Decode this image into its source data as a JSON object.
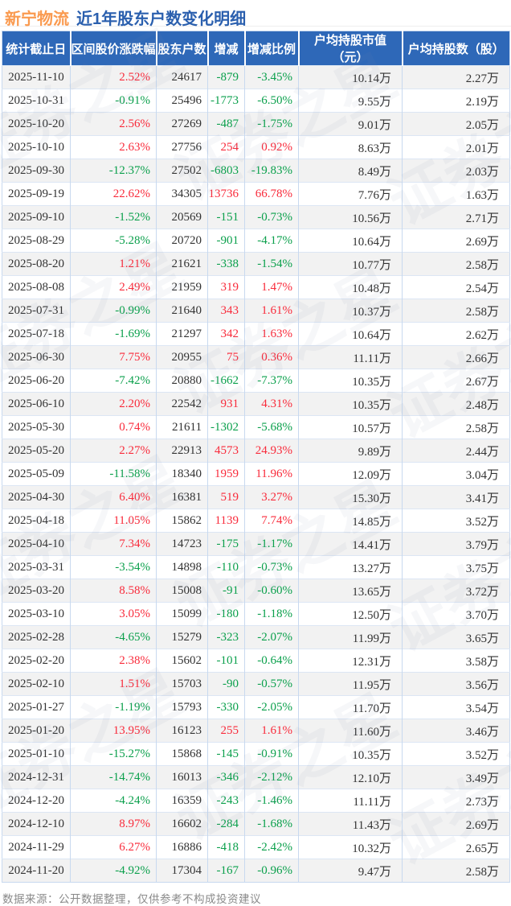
{
  "header": {
    "stock_name": "新宁物流",
    "title": "近1年股东户数变化明细"
  },
  "footer": {
    "note": "数据来源：公开数据整理，仅供参考不构成投资建议"
  },
  "watermark": {
    "text": "证券之星"
  },
  "colors": {
    "header_bg": "#2E68B8",
    "title_orange": "#FA9A4F",
    "title_blue": "#2A5FAE",
    "up_red": "#F92B3B",
    "down_green": "#0BA04C",
    "row_alt": "#F2F2F2",
    "border": "#C8D9EF"
  },
  "chart_data": {
    "type": "table",
    "title": "新宁物流 近1年股东户数变化明细",
    "columns": [
      "统计截止日",
      "区间股价涨跌幅",
      "股东户数",
      "增减",
      "增减比例",
      "户均持股市值（元）",
      "户均持股数（股）"
    ],
    "color_legend": {
      "r": "rise/red",
      "g": "fall/green"
    },
    "rows": [
      [
        "2025-11-10",
        "2.52%",
        "r",
        "24617",
        "-879",
        "g",
        "-3.45%",
        "10.14万",
        "2.27万"
      ],
      [
        "2025-10-31",
        "-0.91%",
        "g",
        "25496",
        "-1773",
        "g",
        "-6.50%",
        "9.55万",
        "2.19万"
      ],
      [
        "2025-10-20",
        "2.56%",
        "r",
        "27269",
        "-487",
        "g",
        "-1.75%",
        "9.01万",
        "2.05万"
      ],
      [
        "2025-10-10",
        "2.63%",
        "r",
        "27756",
        "254",
        "r",
        "0.92%",
        "8.63万",
        "2.01万"
      ],
      [
        "2025-09-30",
        "-12.37%",
        "g",
        "27502",
        "-6803",
        "g",
        "-19.83%",
        "8.49万",
        "2.03万"
      ],
      [
        "2025-09-19",
        "22.62%",
        "r",
        "34305",
        "13736",
        "r",
        "66.78%",
        "7.76万",
        "1.63万"
      ],
      [
        "2025-09-10",
        "-1.52%",
        "g",
        "20569",
        "-151",
        "g",
        "-0.73%",
        "10.56万",
        "2.71万"
      ],
      [
        "2025-08-29",
        "-5.28%",
        "g",
        "20720",
        "-901",
        "g",
        "-4.17%",
        "10.64万",
        "2.69万"
      ],
      [
        "2025-08-20",
        "1.21%",
        "r",
        "21621",
        "-338",
        "g",
        "-1.54%",
        "10.77万",
        "2.58万"
      ],
      [
        "2025-08-08",
        "2.49%",
        "r",
        "21959",
        "319",
        "r",
        "1.47%",
        "10.48万",
        "2.54万"
      ],
      [
        "2025-07-31",
        "-0.99%",
        "g",
        "21640",
        "343",
        "r",
        "1.61%",
        "10.37万",
        "2.58万"
      ],
      [
        "2025-07-18",
        "-1.69%",
        "g",
        "21297",
        "342",
        "r",
        "1.63%",
        "10.64万",
        "2.62万"
      ],
      [
        "2025-06-30",
        "7.75%",
        "r",
        "20955",
        "75",
        "r",
        "0.36%",
        "11.11万",
        "2.66万"
      ],
      [
        "2025-06-20",
        "-7.42%",
        "g",
        "20880",
        "-1662",
        "g",
        "-7.37%",
        "10.35万",
        "2.67万"
      ],
      [
        "2025-06-10",
        "2.20%",
        "r",
        "22542",
        "931",
        "r",
        "4.31%",
        "10.35万",
        "2.48万"
      ],
      [
        "2025-05-30",
        "0.74%",
        "r",
        "21611",
        "-1302",
        "g",
        "-5.68%",
        "10.57万",
        "2.58万"
      ],
      [
        "2025-05-20",
        "2.27%",
        "r",
        "22913",
        "4573",
        "r",
        "24.93%",
        "9.89万",
        "2.44万"
      ],
      [
        "2025-05-09",
        "-11.58%",
        "g",
        "18340",
        "1959",
        "r",
        "11.96%",
        "12.09万",
        "3.04万"
      ],
      [
        "2025-04-30",
        "6.40%",
        "r",
        "16381",
        "519",
        "r",
        "3.27%",
        "15.30万",
        "3.41万"
      ],
      [
        "2025-04-18",
        "11.05%",
        "r",
        "15862",
        "1139",
        "r",
        "7.74%",
        "14.85万",
        "3.52万"
      ],
      [
        "2025-04-10",
        "7.34%",
        "r",
        "14723",
        "-175",
        "g",
        "-1.17%",
        "14.41万",
        "3.79万"
      ],
      [
        "2025-03-31",
        "-3.54%",
        "g",
        "14898",
        "-110",
        "g",
        "-0.73%",
        "13.27万",
        "3.75万"
      ],
      [
        "2025-03-20",
        "8.58%",
        "r",
        "15008",
        "-91",
        "g",
        "-0.60%",
        "13.65万",
        "3.72万"
      ],
      [
        "2025-03-10",
        "3.05%",
        "r",
        "15099",
        "-180",
        "g",
        "-1.18%",
        "12.50万",
        "3.70万"
      ],
      [
        "2025-02-28",
        "-4.65%",
        "g",
        "15279",
        "-323",
        "g",
        "-2.07%",
        "11.99万",
        "3.65万"
      ],
      [
        "2025-02-20",
        "2.38%",
        "r",
        "15602",
        "-101",
        "g",
        "-0.64%",
        "12.31万",
        "3.58万"
      ],
      [
        "2025-02-10",
        "1.51%",
        "r",
        "15703",
        "-90",
        "g",
        "-0.57%",
        "11.95万",
        "3.56万"
      ],
      [
        "2025-01-27",
        "-1.19%",
        "g",
        "15793",
        "-330",
        "g",
        "-2.05%",
        "11.70万",
        "3.54万"
      ],
      [
        "2025-01-20",
        "13.95%",
        "r",
        "16123",
        "255",
        "r",
        "1.61%",
        "11.60万",
        "3.46万"
      ],
      [
        "2025-01-10",
        "-15.27%",
        "g",
        "15868",
        "-145",
        "g",
        "-0.91%",
        "10.35万",
        "3.52万"
      ],
      [
        "2024-12-31",
        "-14.74%",
        "g",
        "16013",
        "-346",
        "g",
        "-2.12%",
        "12.10万",
        "3.49万"
      ],
      [
        "2024-12-20",
        "-4.24%",
        "g",
        "16359",
        "-243",
        "g",
        "-1.46%",
        "11.11万",
        "2.73万"
      ],
      [
        "2024-12-10",
        "8.97%",
        "r",
        "16602",
        "-284",
        "g",
        "-1.68%",
        "11.43万",
        "2.69万"
      ],
      [
        "2024-11-29",
        "6.27%",
        "r",
        "16886",
        "-418",
        "g",
        "-2.42%",
        "10.32万",
        "2.65万"
      ],
      [
        "2024-11-20",
        "-4.92%",
        "g",
        "17304",
        "-167",
        "g",
        "-0.96%",
        "9.47万",
        "2.58万"
      ]
    ],
    "source": "数据来源：公开数据整理，仅供参考不构成投资建议"
  }
}
